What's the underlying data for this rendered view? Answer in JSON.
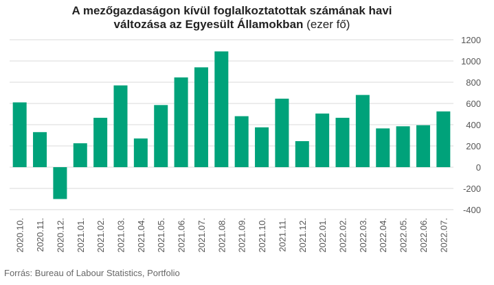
{
  "chart_data": {
    "type": "bar",
    "title_line1": "A mezőgazdaságon kívül foglalkoztatottak számának havi",
    "title_line2": "változása az Egyesült Államokban",
    "title_unit": "(ezer fő)",
    "categories": [
      "2020.10.",
      "2020.11.",
      "2020.12.",
      "2021.01.",
      "2021.02.",
      "2021.03.",
      "2021.04.",
      "2021.05.",
      "2021.06.",
      "2021.07.",
      "2021.08.",
      "2021.09.",
      "2021.10.",
      "2021.11.",
      "2021.12.",
      "2022.01.",
      "2022.02.",
      "2022.03.",
      "2022.04.",
      "2022.05.",
      "2022.06.",
      "2022.07."
    ],
    "values": [
      610,
      330,
      -300,
      225,
      465,
      770,
      270,
      585,
      845,
      940,
      1090,
      480,
      375,
      645,
      245,
      505,
      465,
      680,
      365,
      385,
      395,
      525
    ],
    "ylim": [
      -400,
      1200
    ],
    "yticks": [
      "-400",
      "-200",
      "0",
      "200",
      "400",
      "600",
      "800",
      "1000",
      "1200"
    ],
    "ytick_values": [
      -400,
      -200,
      0,
      200,
      400,
      600,
      800,
      1000,
      1200
    ],
    "yaxis_position": "right",
    "grid": true,
    "bar_color": "#00a27a",
    "grid_color": "#d9d9d9"
  },
  "source": "Forrás: Bureau of Labour Statistics, Portfolio"
}
